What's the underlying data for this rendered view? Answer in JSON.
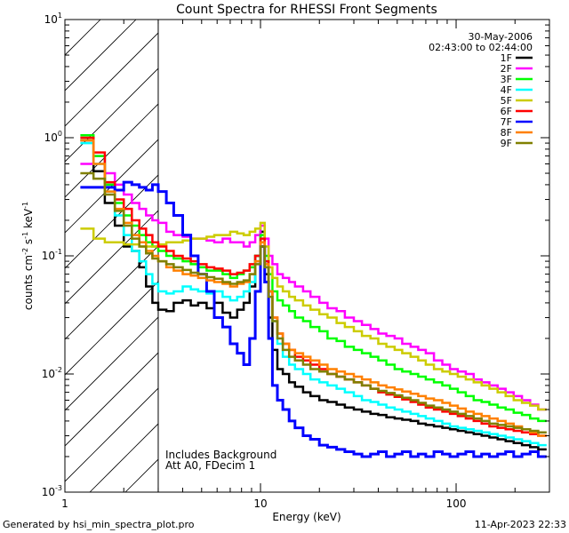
{
  "chart_data": {
    "type": "line",
    "title": "Count Spectra for RHESSI Front Segments",
    "xlabel": "Energy (keV)",
    "ylabel": {
      "base": "counts cm",
      "exp1": "-2",
      "mid1": " s",
      "exp2": "-1",
      "mid2": " keV",
      "exp3": "-1"
    },
    "xscale": "log",
    "yscale": "log",
    "xlim": [
      1,
      300
    ],
    "ylim": [
      0.001,
      10
    ],
    "x_ticks": [
      {
        "value": 1,
        "label": "1"
      },
      {
        "value": 10,
        "label": "10"
      },
      {
        "value": 100,
        "label": "100"
      }
    ],
    "y_ticks": [
      {
        "value": 0.001,
        "base": "10",
        "exp": "-3"
      },
      {
        "value": 0.01,
        "base": "10",
        "exp": "-2"
      },
      {
        "value": 0.1,
        "base": "10",
        "exp": "-1"
      },
      {
        "value": 1,
        "base": "10",
        "exp": "0"
      },
      {
        "value": 10,
        "base": "10",
        "exp": "1"
      }
    ],
    "hatch_region_kev": [
      1,
      3
    ],
    "date": "30-May-2006",
    "time_range": "02:43:00 to 02:44:00",
    "annotations": [
      "Includes Background",
      "Att A0, FDecim 1"
    ],
    "footer_left": "Generated by hsi_min_spectra_plot.pro",
    "footer_right": "11-Apr-2023 22:33",
    "legend_position": "top-right",
    "energy_edges": [
      1.2,
      1.4,
      1.6,
      1.8,
      2.0,
      2.2,
      2.4,
      2.6,
      2.8,
      3.0,
      3.3,
      3.6,
      4.0,
      4.4,
      4.8,
      5.3,
      5.8,
      6.4,
      7.0,
      7.6,
      8.2,
      8.8,
      9.4,
      10.0,
      10.5,
      11.0,
      11.5,
      12.2,
      13.0,
      14.0,
      15.0,
      16.5,
      18.0,
      20.0,
      22.0,
      24.5,
      27.0,
      30.0,
      33.0,
      36.5,
      40.0,
      44.0,
      48.5,
      53.0,
      58.5,
      64.0,
      70.0,
      77.0,
      85.0,
      93.0,
      102.0,
      112.0,
      123.0,
      135.0,
      148.0,
      163.0,
      179.0,
      197.0,
      217.0,
      239.0,
      263.0,
      290.0
    ],
    "series": [
      {
        "name": "1F",
        "color": "#000000",
        "width": 2.5,
        "values": [
          0.95,
          0.52,
          0.28,
          0.18,
          0.12,
          0.11,
          0.08,
          0.055,
          0.04,
          0.035,
          0.034,
          0.04,
          0.042,
          0.038,
          0.04,
          0.036,
          0.04,
          0.033,
          0.03,
          0.035,
          0.04,
          0.055,
          0.1,
          0.16,
          0.07,
          0.03,
          0.016,
          0.011,
          0.01,
          0.0085,
          0.0078,
          0.007,
          0.0065,
          0.006,
          0.0058,
          0.0055,
          0.0052,
          0.005,
          0.0048,
          0.0046,
          0.0045,
          0.0043,
          0.0042,
          0.0041,
          0.004,
          0.0038,
          0.0037,
          0.0036,
          0.0035,
          0.0034,
          0.0033,
          0.0032,
          0.0031,
          0.003,
          0.0029,
          0.0028,
          0.0027,
          0.0026,
          0.0025,
          0.0024,
          0.0023
        ]
      },
      {
        "name": "2F",
        "color": "#ff00ff",
        "width": 2.5,
        "values": [
          0.6,
          0.7,
          0.5,
          0.4,
          0.33,
          0.28,
          0.25,
          0.22,
          0.2,
          0.19,
          0.16,
          0.15,
          0.145,
          0.14,
          0.14,
          0.135,
          0.13,
          0.14,
          0.13,
          0.13,
          0.12,
          0.13,
          0.15,
          0.18,
          0.14,
          0.1,
          0.085,
          0.07,
          0.065,
          0.06,
          0.055,
          0.05,
          0.045,
          0.04,
          0.036,
          0.034,
          0.03,
          0.028,
          0.026,
          0.024,
          0.022,
          0.021,
          0.02,
          0.018,
          0.017,
          0.016,
          0.015,
          0.013,
          0.012,
          0.011,
          0.0105,
          0.01,
          0.009,
          0.0085,
          0.008,
          0.0075,
          0.007,
          0.0065,
          0.006,
          0.0055,
          0.005
        ]
      },
      {
        "name": "3F",
        "color": "#00ff00",
        "width": 2.5,
        "values": [
          1.05,
          0.7,
          0.4,
          0.28,
          0.22,
          0.18,
          0.15,
          0.13,
          0.12,
          0.11,
          0.1,
          0.095,
          0.09,
          0.085,
          0.08,
          0.075,
          0.075,
          0.07,
          0.065,
          0.07,
          0.075,
          0.08,
          0.1,
          0.15,
          0.1,
          0.07,
          0.05,
          0.042,
          0.038,
          0.034,
          0.03,
          0.028,
          0.025,
          0.023,
          0.02,
          0.019,
          0.017,
          0.016,
          0.015,
          0.014,
          0.013,
          0.012,
          0.011,
          0.0105,
          0.01,
          0.0095,
          0.009,
          0.0085,
          0.008,
          0.0075,
          0.007,
          0.0065,
          0.006,
          0.0058,
          0.0055,
          0.0052,
          0.005,
          0.0047,
          0.0045,
          0.0042,
          0.004
        ]
      },
      {
        "name": "4F",
        "color": "#00ffff",
        "width": 2.5,
        "values": [
          0.9,
          0.6,
          0.35,
          0.22,
          0.15,
          0.11,
          0.09,
          0.07,
          0.058,
          0.05,
          0.048,
          0.05,
          0.055,
          0.052,
          0.05,
          0.048,
          0.05,
          0.045,
          0.042,
          0.045,
          0.05,
          0.06,
          0.09,
          0.14,
          0.09,
          0.05,
          0.028,
          0.018,
          0.014,
          0.012,
          0.011,
          0.01,
          0.009,
          0.0085,
          0.008,
          0.0075,
          0.007,
          0.0065,
          0.006,
          0.0058,
          0.0055,
          0.0052,
          0.005,
          0.0048,
          0.0046,
          0.0044,
          0.0042,
          0.004,
          0.0038,
          0.0036,
          0.0035,
          0.0034,
          0.0033,
          0.0032,
          0.0031,
          0.003,
          0.0029,
          0.0028,
          0.0027,
          0.0026,
          0.0025
        ]
      },
      {
        "name": "5F",
        "color": "#cccc00",
        "width": 2.5,
        "values": [
          0.17,
          0.14,
          0.13,
          0.13,
          0.125,
          0.125,
          0.12,
          0.12,
          0.12,
          0.125,
          0.13,
          0.13,
          0.135,
          0.14,
          0.14,
          0.145,
          0.15,
          0.15,
          0.16,
          0.155,
          0.15,
          0.16,
          0.17,
          0.19,
          0.12,
          0.08,
          0.065,
          0.055,
          0.05,
          0.045,
          0.042,
          0.038,
          0.035,
          0.032,
          0.03,
          0.027,
          0.025,
          0.023,
          0.021,
          0.02,
          0.018,
          0.017,
          0.016,
          0.015,
          0.014,
          0.013,
          0.012,
          0.011,
          0.0105,
          0.01,
          0.0095,
          0.009,
          0.0085,
          0.008,
          0.0075,
          0.007,
          0.0065,
          0.006,
          0.0057,
          0.0054,
          0.005
        ]
      },
      {
        "name": "6F",
        "color": "#ff0000",
        "width": 2.5,
        "values": [
          1.0,
          0.75,
          0.42,
          0.3,
          0.25,
          0.2,
          0.17,
          0.15,
          0.13,
          0.12,
          0.11,
          0.1,
          0.095,
          0.09,
          0.085,
          0.08,
          0.078,
          0.075,
          0.07,
          0.072,
          0.075,
          0.085,
          0.1,
          0.14,
          0.09,
          0.05,
          0.03,
          0.022,
          0.018,
          0.016,
          0.014,
          0.013,
          0.012,
          0.011,
          0.01,
          0.0095,
          0.009,
          0.0085,
          0.008,
          0.0075,
          0.007,
          0.0067,
          0.0064,
          0.0061,
          0.0058,
          0.0055,
          0.0052,
          0.005,
          0.0048,
          0.0046,
          0.0044,
          0.0042,
          0.004,
          0.0038,
          0.0036,
          0.0035,
          0.0034,
          0.0033,
          0.0032,
          0.0031,
          0.003
        ]
      },
      {
        "name": "7F",
        "color": "#0000ff",
        "width": 3,
        "values": [
          0.38,
          0.38,
          0.38,
          0.36,
          0.42,
          0.4,
          0.38,
          0.36,
          0.4,
          0.35,
          0.28,
          0.22,
          0.15,
          0.1,
          0.07,
          0.05,
          0.03,
          0.025,
          0.018,
          0.015,
          0.012,
          0.02,
          0.05,
          0.12,
          0.06,
          0.02,
          0.008,
          0.006,
          0.005,
          0.004,
          0.0035,
          0.003,
          0.0028,
          0.0025,
          0.0024,
          0.0023,
          0.0022,
          0.0021,
          0.002,
          0.0021,
          0.0022,
          0.002,
          0.0021,
          0.0022,
          0.002,
          0.0021,
          0.002,
          0.0022,
          0.0021,
          0.002,
          0.0021,
          0.0022,
          0.002,
          0.0021,
          0.002,
          0.0021,
          0.0022,
          0.002,
          0.0021,
          0.0022,
          0.002
        ]
      },
      {
        "name": "8F",
        "color": "#ff8000",
        "width": 2.5,
        "values": [
          0.95,
          0.6,
          0.35,
          0.25,
          0.19,
          0.15,
          0.13,
          0.11,
          0.1,
          0.09,
          0.08,
          0.075,
          0.07,
          0.068,
          0.065,
          0.062,
          0.06,
          0.058,
          0.055,
          0.058,
          0.06,
          0.07,
          0.09,
          0.13,
          0.085,
          0.05,
          0.03,
          0.022,
          0.018,
          0.016,
          0.015,
          0.014,
          0.013,
          0.012,
          0.011,
          0.0105,
          0.01,
          0.0095,
          0.009,
          0.0085,
          0.008,
          0.0077,
          0.0074,
          0.0071,
          0.0068,
          0.0065,
          0.0062,
          0.006,
          0.0057,
          0.0054,
          0.0051,
          0.0048,
          0.0046,
          0.0044,
          0.0042,
          0.004,
          0.0038,
          0.0036,
          0.0034,
          0.0032,
          0.003
        ]
      },
      {
        "name": "9F",
        "color": "#808000",
        "width": 2.5,
        "values": [
          0.5,
          0.45,
          0.33,
          0.24,
          0.18,
          0.14,
          0.12,
          0.105,
          0.095,
          0.09,
          0.085,
          0.08,
          0.076,
          0.072,
          0.07,
          0.066,
          0.064,
          0.06,
          0.058,
          0.06,
          0.062,
          0.07,
          0.085,
          0.12,
          0.08,
          0.045,
          0.028,
          0.02,
          0.016,
          0.014,
          0.013,
          0.012,
          0.011,
          0.0105,
          0.01,
          0.0095,
          0.009,
          0.0085,
          0.008,
          0.0075,
          0.0072,
          0.0069,
          0.0066,
          0.0063,
          0.006,
          0.0057,
          0.0054,
          0.0052,
          0.005,
          0.0048,
          0.0046,
          0.0044,
          0.0042,
          0.004,
          0.0038,
          0.0037,
          0.0036,
          0.0035,
          0.0034,
          0.0033,
          0.0032
        ]
      }
    ]
  }
}
